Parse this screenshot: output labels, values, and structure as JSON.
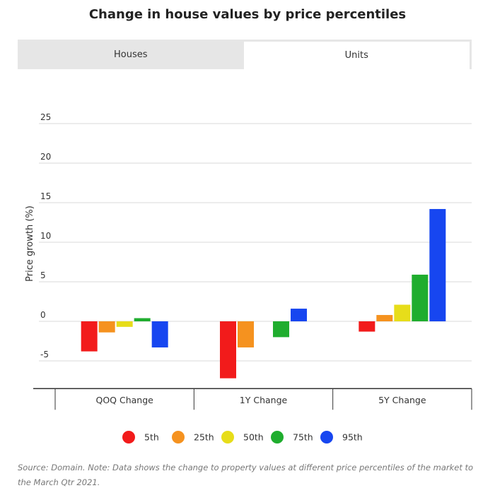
{
  "title": "Change in house values by price percentiles",
  "tabs": [
    {
      "label": "Houses",
      "active": false
    },
    {
      "label": "Units",
      "active": true
    }
  ],
  "chart_data": {
    "type": "bar",
    "categories": [
      "QOQ Change",
      "1Y Change",
      "5Y Change"
    ],
    "series": [
      {
        "name": "5th",
        "color": "#f21b1b",
        "values": [
          -3.8,
          -7.2,
          -1.3
        ]
      },
      {
        "name": "25th",
        "color": "#f5921f",
        "values": [
          -1.4,
          -3.3,
          0.8
        ]
      },
      {
        "name": "50th",
        "color": "#e7dd1a",
        "values": [
          -0.7,
          0,
          2.1
        ]
      },
      {
        "name": "75th",
        "color": "#1fad2e",
        "values": [
          0.4,
          -2.0,
          5.9
        ]
      },
      {
        "name": "95th",
        "color": "#1746f0",
        "values": [
          -3.3,
          1.6,
          14.2
        ]
      }
    ],
    "ylabel": "Price growth (%)",
    "ylim": [
      -8.5,
      25
    ],
    "yticks": [
      25,
      20,
      15,
      10,
      5,
      0,
      -5
    ],
    "grid": true,
    "legend": "bottom"
  },
  "source": "Source: Domain. Note: Data shows the change to property values at different price percentiles of the market to the March Qtr 2021."
}
